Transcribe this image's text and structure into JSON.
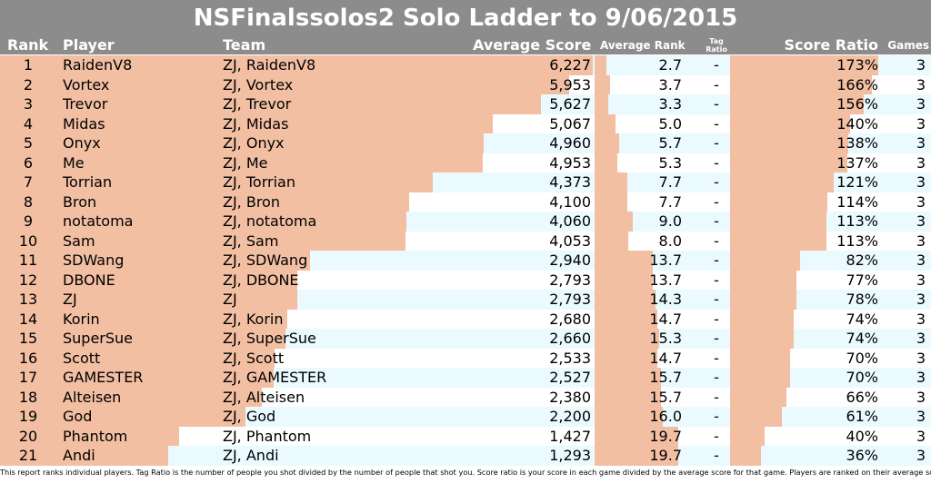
{
  "title": "NSFinalssolos2 Solo Ladder to 9/06/2015",
  "headers": {
    "rank": "Rank",
    "player": "Player",
    "team": "Team",
    "average_score": "Average Score",
    "average_rank": "Average Rank",
    "tag_ratio_line1": "Tag",
    "tag_ratio_line2": "Ratio",
    "score_ratio": "Score Ratio",
    "games": "Games"
  },
  "colors": {
    "header_bg": "#8c8c8c",
    "bar": "#f2bfa2",
    "row_tint": "#eafaff"
  },
  "scales": {
    "average_score_max": 6227,
    "average_rank_max": 21,
    "score_ratio_max": 1.73
  },
  "rows": [
    {
      "rank": "1",
      "player": "RaidenV8",
      "team": "ZJ, RaidenV8",
      "average_score": "6,227",
      "average_score_value": 6227,
      "average_rank": "2.7",
      "average_rank_value": 2.7,
      "tag_ratio": "-",
      "score_ratio": "173%",
      "score_ratio_value": 1.73,
      "games": "3"
    },
    {
      "rank": "2",
      "player": "Vortex",
      "team": "ZJ, Vortex",
      "average_score": "5,953",
      "average_score_value": 5953,
      "average_rank": "3.7",
      "average_rank_value": 3.7,
      "tag_ratio": "-",
      "score_ratio": "166%",
      "score_ratio_value": 1.66,
      "games": "3"
    },
    {
      "rank": "3",
      "player": "Trevor",
      "team": "ZJ, Trevor",
      "average_score": "5,627",
      "average_score_value": 5627,
      "average_rank": "3.3",
      "average_rank_value": 3.3,
      "tag_ratio": "-",
      "score_ratio": "156%",
      "score_ratio_value": 1.56,
      "games": "3"
    },
    {
      "rank": "4",
      "player": "Midas",
      "team": "ZJ, Midas",
      "average_score": "5,067",
      "average_score_value": 5067,
      "average_rank": "5.0",
      "average_rank_value": 5.0,
      "tag_ratio": "-",
      "score_ratio": "140%",
      "score_ratio_value": 1.4,
      "games": "3"
    },
    {
      "rank": "5",
      "player": "Onyx",
      "team": "ZJ, Onyx",
      "average_score": "4,960",
      "average_score_value": 4960,
      "average_rank": "5.7",
      "average_rank_value": 5.7,
      "tag_ratio": "-",
      "score_ratio": "138%",
      "score_ratio_value": 1.38,
      "games": "3"
    },
    {
      "rank": "6",
      "player": "Me",
      "team": "ZJ, Me",
      "average_score": "4,953",
      "average_score_value": 4953,
      "average_rank": "5.3",
      "average_rank_value": 5.3,
      "tag_ratio": "-",
      "score_ratio": "137%",
      "score_ratio_value": 1.37,
      "games": "3"
    },
    {
      "rank": "7",
      "player": "Torrian",
      "team": "ZJ, Torrian",
      "average_score": "4,373",
      "average_score_value": 4373,
      "average_rank": "7.7",
      "average_rank_value": 7.7,
      "tag_ratio": "-",
      "score_ratio": "121%",
      "score_ratio_value": 1.21,
      "games": "3"
    },
    {
      "rank": "8",
      "player": "Bron",
      "team": "ZJ, Bron",
      "average_score": "4,100",
      "average_score_value": 4100,
      "average_rank": "7.7",
      "average_rank_value": 7.7,
      "tag_ratio": "-",
      "score_ratio": "114%",
      "score_ratio_value": 1.14,
      "games": "3"
    },
    {
      "rank": "9",
      "player": "notatoma",
      "team": "ZJ, notatoma",
      "average_score": "4,060",
      "average_score_value": 4060,
      "average_rank": "9.0",
      "average_rank_value": 9.0,
      "tag_ratio": "-",
      "score_ratio": "113%",
      "score_ratio_value": 1.13,
      "games": "3"
    },
    {
      "rank": "10",
      "player": "Sam",
      "team": "ZJ, Sam",
      "average_score": "4,053",
      "average_score_value": 4053,
      "average_rank": "8.0",
      "average_rank_value": 8.0,
      "tag_ratio": "-",
      "score_ratio": "113%",
      "score_ratio_value": 1.13,
      "games": "3"
    },
    {
      "rank": "11",
      "player": "SDWang",
      "team": "ZJ, SDWang",
      "average_score": "2,940",
      "average_score_value": 2940,
      "average_rank": "13.7",
      "average_rank_value": 13.7,
      "tag_ratio": "-",
      "score_ratio": "82%",
      "score_ratio_value": 0.82,
      "games": "3"
    },
    {
      "rank": "12",
      "player": "DBONE",
      "team": "ZJ, DBONE",
      "average_score": "2,793",
      "average_score_value": 2793,
      "average_rank": "13.7",
      "average_rank_value": 13.7,
      "tag_ratio": "-",
      "score_ratio": "77%",
      "score_ratio_value": 0.77,
      "games": "3"
    },
    {
      "rank": "13",
      "player": "ZJ",
      "team": "ZJ",
      "average_score": "2,793",
      "average_score_value": 2793,
      "average_rank": "14.3",
      "average_rank_value": 14.3,
      "tag_ratio": "-",
      "score_ratio": "78%",
      "score_ratio_value": 0.78,
      "games": "3"
    },
    {
      "rank": "14",
      "player": "Korin",
      "team": "ZJ, Korin",
      "average_score": "2,680",
      "average_score_value": 2680,
      "average_rank": "14.7",
      "average_rank_value": 14.7,
      "tag_ratio": "-",
      "score_ratio": "74%",
      "score_ratio_value": 0.74,
      "games": "3"
    },
    {
      "rank": "15",
      "player": "SuperSue",
      "team": "ZJ, SuperSue",
      "average_score": "2,660",
      "average_score_value": 2660,
      "average_rank": "15.3",
      "average_rank_value": 15.3,
      "tag_ratio": "-",
      "score_ratio": "74%",
      "score_ratio_value": 0.74,
      "games": "3"
    },
    {
      "rank": "16",
      "player": "Scott",
      "team": "ZJ, Scott",
      "average_score": "2,533",
      "average_score_value": 2533,
      "average_rank": "14.7",
      "average_rank_value": 14.7,
      "tag_ratio": "-",
      "score_ratio": "70%",
      "score_ratio_value": 0.7,
      "games": "3"
    },
    {
      "rank": "17",
      "player": "GAMESTER",
      "team": "ZJ, GAMESTER",
      "average_score": "2,527",
      "average_score_value": 2527,
      "average_rank": "15.7",
      "average_rank_value": 15.7,
      "tag_ratio": "-",
      "score_ratio": "70%",
      "score_ratio_value": 0.7,
      "games": "3"
    },
    {
      "rank": "18",
      "player": "Alteisen",
      "team": "ZJ, Alteisen",
      "average_score": "2,380",
      "average_score_value": 2380,
      "average_rank": "15.7",
      "average_rank_value": 15.7,
      "tag_ratio": "-",
      "score_ratio": "66%",
      "score_ratio_value": 0.66,
      "games": "3"
    },
    {
      "rank": "19",
      "player": "God",
      "team": "ZJ, God",
      "average_score": "2,200",
      "average_score_value": 2200,
      "average_rank": "16.0",
      "average_rank_value": 16.0,
      "tag_ratio": "-",
      "score_ratio": "61%",
      "score_ratio_value": 0.61,
      "games": "3"
    },
    {
      "rank": "20",
      "player": "Phantom",
      "team": "ZJ, Phantom",
      "average_score": "1,427",
      "average_score_value": 1427,
      "average_rank": "19.7",
      "average_rank_value": 19.7,
      "tag_ratio": "-",
      "score_ratio": "40%",
      "score_ratio_value": 0.4,
      "games": "3"
    },
    {
      "rank": "21",
      "player": "Andi",
      "team": "ZJ, Andi",
      "average_score": "1,293",
      "average_score_value": 1293,
      "average_rank": "19.7",
      "average_rank_value": 19.7,
      "tag_ratio": "-",
      "score_ratio": "36%",
      "score_ratio_value": 0.36,
      "games": "3"
    }
  ],
  "footnote": "This report ranks individual players.  Tag Ratio is the number of people you shot divided by the number of people that shot you.  Score ratio is your score in each game divided by the average score for that game.  Players are ranked on their average score."
}
